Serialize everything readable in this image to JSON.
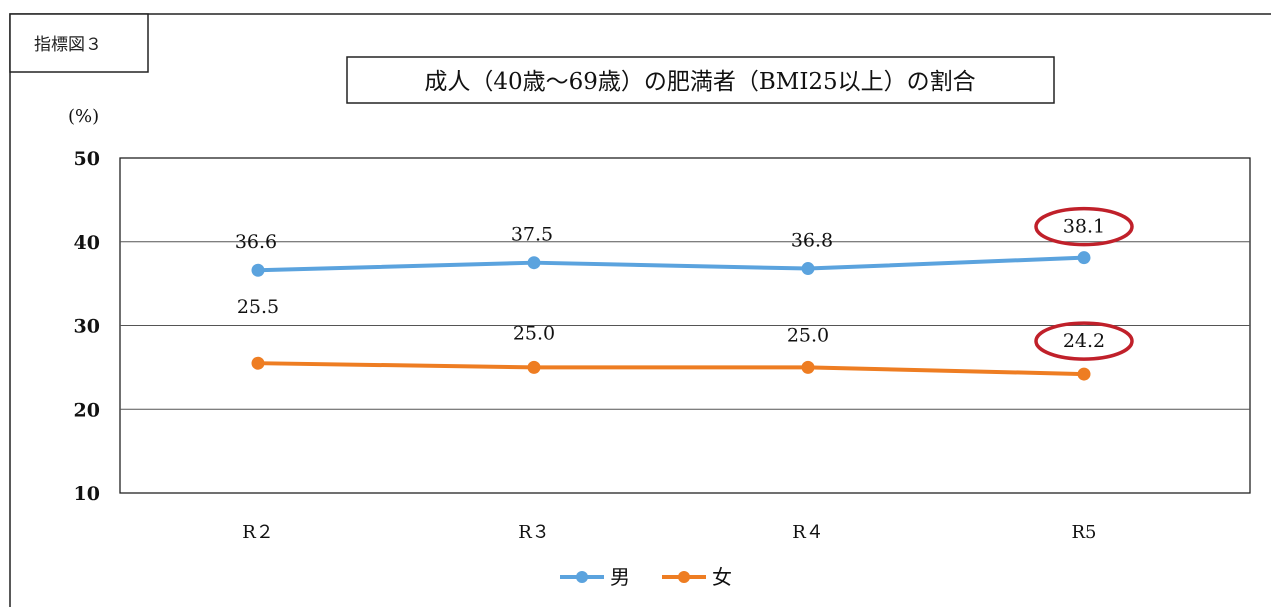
{
  "figure_tag": "指標図３",
  "chart_data": {
    "type": "line",
    "title": "成人（40歳～69歳）の肥満者（BMI25以上）の割合",
    "unit_label": "(%)",
    "xlabel": "",
    "ylabel": "",
    "categories": [
      "R2",
      "R3",
      "R4",
      "R5"
    ],
    "category_labels": [
      "R２",
      "R３",
      "R４",
      "R5"
    ],
    "ylim": [
      10,
      50
    ],
    "yticks": [
      "10",
      "20",
      "30",
      "40",
      "50"
    ],
    "grid": true,
    "legend_position": "bottom",
    "series": [
      {
        "name": "男",
        "values": [
          36.6,
          37.5,
          36.8,
          38.1
        ],
        "labels": [
          "36.6",
          "37.5",
          "36.8",
          "38.1"
        ],
        "color": "#5ba3de"
      },
      {
        "name": "女",
        "values": [
          25.5,
          25.0,
          25.0,
          24.2
        ],
        "labels": [
          "25.5",
          "25.0",
          "25.0",
          "24.2"
        ],
        "color": "#ee7d22"
      }
    ],
    "highlight_color": "#c0202a",
    "highlighted_category": "R5"
  }
}
